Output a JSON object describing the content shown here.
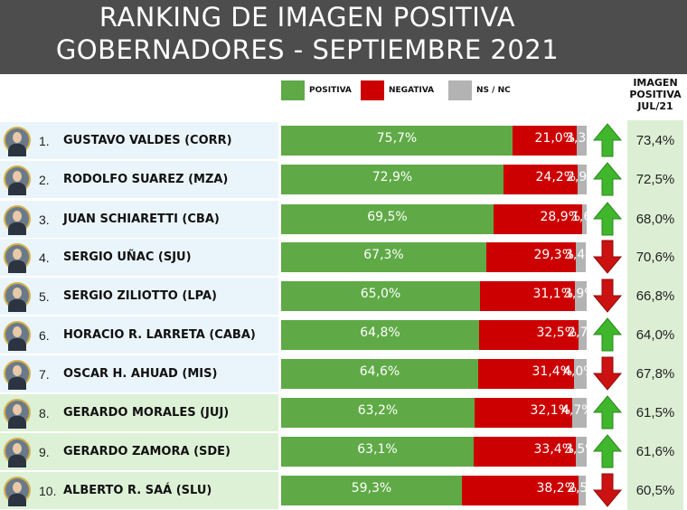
{
  "title": {
    "line1": "RANKING DE IMAGEN POSITIVA",
    "line2": "GOBERNADORES - SEPTIEMBRE 2021"
  },
  "legend": {
    "positiva": "POSITIVA",
    "negativa": "NEGATIVA",
    "nsnc": "NS / NC"
  },
  "prev_header": {
    "line1": "IMAGEN",
    "line2": "POSITIVA",
    "line3": "JUL/21"
  },
  "colors": {
    "positiva": "#5faa46",
    "negativa": "#cc0000",
    "nsnc": "#b3b3b3",
    "arrow_up": "#3fb62c",
    "arrow_down": "#cc1111",
    "row_blue": "#eaf5fb",
    "row_green": "#ddf1d6"
  },
  "chart_data": {
    "type": "bar",
    "stacked": true,
    "orientation": "horizontal",
    "categories": [
      "GUSTAVO VALDES (CORR)",
      "RODOLFO SUAREZ (MZA)",
      "JUAN SCHIARETTI (CBA)",
      "SERGIO UÑAC (SJU)",
      "SERGIO ZILIOTTO (LPA)",
      "HORACIO R. LARRETA (CABA)",
      "OSCAR H. AHUAD (MIS)",
      "GERARDO MORALES (JUJ)",
      "GERARDO ZAMORA (SDE)",
      "ALBERTO R. SAÁ (SLU)"
    ],
    "series": [
      {
        "name": "POSITIVA",
        "values": [
          75.7,
          72.9,
          69.5,
          67.3,
          65.0,
          64.8,
          64.6,
          63.2,
          63.1,
          59.3
        ]
      },
      {
        "name": "NEGATIVA",
        "values": [
          21.0,
          24.2,
          28.9,
          29.3,
          31.1,
          32.5,
          31.4,
          32.1,
          33.4,
          38.2
        ]
      },
      {
        "name": "NS / NC",
        "values": [
          3.3,
          2.9,
          1.6,
          3.4,
          3.9,
          2.7,
          4.0,
          4.7,
          3.5,
          2.5
        ]
      }
    ]
  },
  "rows": [
    {
      "rank": "1.",
      "name": "GUSTAVO VALDES (CORR)",
      "pos": "75,7%",
      "neg": "21,0%",
      "ns": "3,3%",
      "trend": "up",
      "prev": "73,4%",
      "band": "blue"
    },
    {
      "rank": "2.",
      "name": "RODOLFO SUAREZ (MZA)",
      "pos": "72,9%",
      "neg": "24,2%",
      "ns": "2,9%",
      "trend": "up",
      "prev": "72,5%",
      "band": "blue"
    },
    {
      "rank": "3.",
      "name": "JUAN SCHIARETTI (CBA)",
      "pos": "69,5%",
      "neg": "28,9%",
      "ns": "1,6%",
      "trend": "up",
      "prev": "68,0%",
      "band": "blue"
    },
    {
      "rank": "4.",
      "name": "SERGIO UÑAC (SJU)",
      "pos": "67,3%",
      "neg": "29,3%",
      "ns": "3,4%",
      "trend": "down",
      "prev": "70,6%",
      "band": "blue"
    },
    {
      "rank": "5.",
      "name": "SERGIO ZILIOTTO (LPA)",
      "pos": "65,0%",
      "neg": "31,1%",
      "ns": "3,9%",
      "trend": "down",
      "prev": "66,8%",
      "band": "blue"
    },
    {
      "rank": "6.",
      "name": "HORACIO R. LARRETA (CABA)",
      "pos": "64,8%",
      "neg": "32,5%",
      "ns": "2,7%",
      "trend": "up",
      "prev": "64,0%",
      "band": "blue"
    },
    {
      "rank": "7.",
      "name": "OSCAR H. AHUAD (MIS)",
      "pos": "64,6%",
      "neg": "31,4%",
      "ns": "4,0%",
      "trend": "down",
      "prev": "67,8%",
      "band": "blue"
    },
    {
      "rank": "8.",
      "name": "GERARDO MORALES (JUJ)",
      "pos": "63,2%",
      "neg": "32,1%",
      "ns": "4,7%",
      "trend": "up",
      "prev": "61,5%",
      "band": "green"
    },
    {
      "rank": "9.",
      "name": "GERARDO ZAMORA (SDE)",
      "pos": "63,1%",
      "neg": "33,4%",
      "ns": "3,5%",
      "trend": "up",
      "prev": "61,6%",
      "band": "green"
    },
    {
      "rank": "10.",
      "name": "ALBERTO R. SAÁ (SLU)",
      "pos": "59,3%",
      "neg": "38,2%",
      "ns": "2,5%",
      "trend": "down",
      "prev": "60,5%",
      "band": "green"
    }
  ]
}
